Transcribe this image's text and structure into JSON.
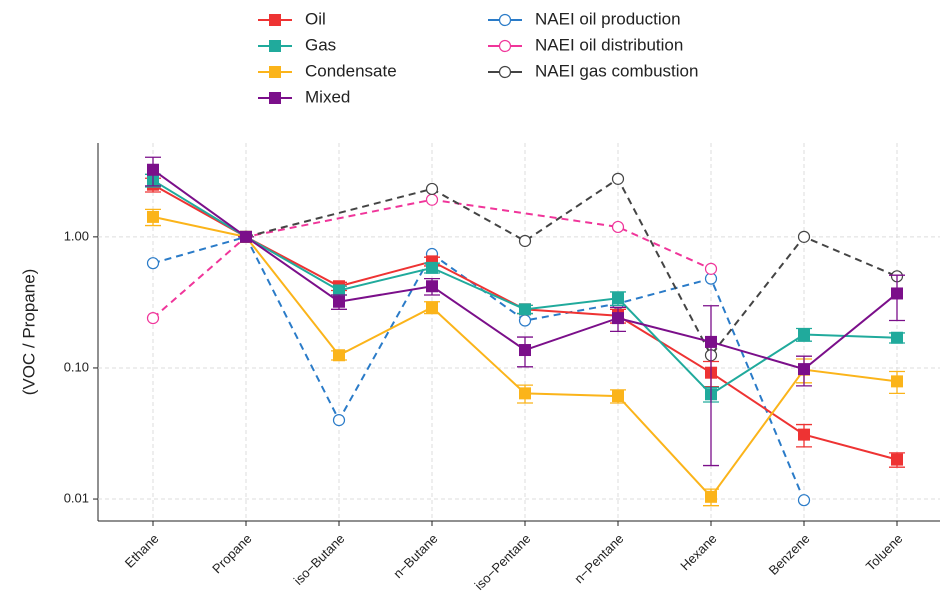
{
  "chart_data": {
    "type": "line",
    "y_label": "(VOC / Propane)",
    "categories": [
      "Ethane",
      "Propane",
      "iso−Butane",
      "n−Butane",
      "iso−Pentane",
      "n−Pentane",
      "Hexane",
      "Benzene",
      "Toluene"
    ],
    "log_y": true,
    "grid": true,
    "ylim": [
      0.0068,
      5.2
    ],
    "yticks": [
      0.01,
      {
        "value": 0.1,
        "label": "0.10"
      },
      {
        "value": 1,
        "label": "1.00"
      }
    ],
    "series": [
      {
        "name": "Oil",
        "color": "#ee3333",
        "marker": "square",
        "dashed": false,
        "values": [
          2.5,
          1,
          0.42,
          0.65,
          0.28,
          0.25,
          0.092,
          0.031,
          0.02
        ],
        "errors": [
          0.3,
          0,
          0.03,
          0.05,
          0.02,
          0.03,
          0.02,
          0.006,
          0.0025
        ]
      },
      {
        "name": "Gas",
        "color": "#20aa9c",
        "marker": "square",
        "dashed": false,
        "values": [
          2.7,
          1,
          0.39,
          0.58,
          0.28,
          0.34,
          0.063,
          0.18,
          0.17
        ],
        "errors": [
          0.3,
          0,
          0.03,
          0.05,
          0.02,
          0.04,
          0.008,
          0.02,
          0.015
        ]
      },
      {
        "name": "Condensate",
        "color": "#fbb41a",
        "marker": "square",
        "dashed": false,
        "values": [
          1.42,
          1,
          0.125,
          0.29,
          0.064,
          0.061,
          0.0104,
          0.097,
          0.079
        ],
        "errors": [
          0.2,
          0,
          0.01,
          0.03,
          0.01,
          0.007,
          0.0015,
          0.02,
          0.015
        ]
      },
      {
        "name": "Mixed",
        "color": "#7b0f8a",
        "marker": "square",
        "dashed": false,
        "values": [
          3.25,
          1,
          0.32,
          0.42,
          0.137,
          0.24,
          0.158,
          0.098,
          0.37
        ],
        "errors": [
          0.8,
          0,
          0.04,
          0.06,
          0.035,
          0.05,
          0.14,
          0.025,
          0.14
        ]
      },
      {
        "name": "NAEI oil production",
        "color": "#2a7bc8",
        "marker": "circle",
        "dashed": true,
        "x": [
          "Ethane",
          "Propane",
          "iso−Butane",
          "n−Butane",
          "iso−Pentane",
          "n−Pentane",
          "Hexane",
          "Benzene"
        ],
        "values": [
          0.63,
          1,
          0.04,
          0.74,
          0.23,
          0.31,
          0.48,
          0.0098
        ]
      },
      {
        "name": "NAEI oil distribution",
        "color": "#f0359a",
        "marker": "circle",
        "dashed": true,
        "x": [
          "Ethane",
          "Propane",
          "n−Butane",
          "n−Pentane",
          "Hexane"
        ],
        "values": [
          0.24,
          1,
          1.92,
          1.19,
          0.57
        ]
      },
      {
        "name": "NAEI gas combustion",
        "color": "#444444",
        "marker": "circle",
        "dashed": true,
        "x": [
          "Propane",
          "n−Butane",
          "iso−Pentane",
          "n−Pentane",
          "Hexane",
          "Benzene",
          "Toluene"
        ],
        "values": [
          1,
          2.32,
          0.93,
          2.77,
          0.125,
          1,
          0.5
        ]
      }
    ]
  }
}
